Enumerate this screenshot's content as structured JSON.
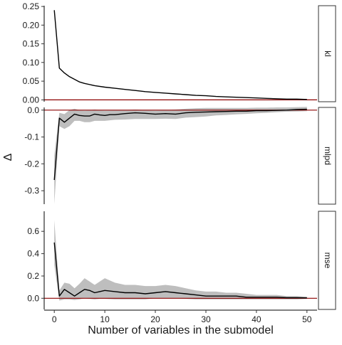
{
  "chart_data": {
    "type": "line",
    "facets": "vertical",
    "xlabel": "Number of variables in the submodel",
    "ylabel": "Δ",
    "xlim": [
      -2,
      52
    ],
    "x_ticks": [
      0,
      10,
      20,
      30,
      40,
      50
    ],
    "x_tick_labels": [
      "0",
      "10",
      "20",
      "30",
      "40",
      "50"
    ],
    "reference_line": {
      "y": 0,
      "color": "#8b0000"
    },
    "line_color": "#000000",
    "band_color": "#bebebe",
    "panels": [
      {
        "strip_label": "kl",
        "ylim": [
          -0.005,
          0.252
        ],
        "y_ticks": [
          0.0,
          0.05,
          0.1,
          0.15,
          0.2,
          0.25
        ],
        "y_tick_labels": [
          "0.00",
          "0.05",
          "0.10",
          "0.15",
          "0.20",
          "0.25"
        ],
        "x": [
          0,
          1,
          2,
          3,
          4,
          5,
          6,
          8,
          10,
          12,
          14,
          16,
          18,
          20,
          22,
          24,
          26,
          28,
          30,
          32,
          34,
          36,
          38,
          40,
          42,
          44,
          46,
          48,
          50
        ],
        "y": [
          0.24,
          0.085,
          0.072,
          0.062,
          0.055,
          0.048,
          0.044,
          0.038,
          0.034,
          0.031,
          0.028,
          0.025,
          0.022,
          0.02,
          0.018,
          0.016,
          0.014,
          0.012,
          0.011,
          0.009,
          0.008,
          0.007,
          0.006,
          0.005,
          0.004,
          0.003,
          0.002,
          0.002,
          0.001
        ],
        "lower": null,
        "upper": null
      },
      {
        "strip_label": "mlpd",
        "ylim": [
          -0.35,
          0.01
        ],
        "y_ticks": [
          0.0,
          -0.1,
          -0.2,
          -0.3
        ],
        "y_tick_labels": [
          "0.0",
          "-0.1",
          "-0.2",
          "-0.3"
        ],
        "x": [
          0,
          1,
          2,
          3,
          4,
          5,
          6,
          7,
          8,
          9,
          10,
          11,
          12,
          14,
          16,
          18,
          20,
          22,
          24,
          26,
          28,
          30,
          32,
          34,
          36,
          38,
          40,
          42,
          44,
          46,
          48,
          50
        ],
        "y": [
          -0.26,
          -0.03,
          -0.045,
          -0.03,
          -0.015,
          -0.02,
          -0.022,
          -0.022,
          -0.015,
          -0.018,
          -0.02,
          -0.017,
          -0.017,
          -0.013,
          -0.01,
          -0.012,
          -0.015,
          -0.013,
          -0.015,
          -0.01,
          -0.008,
          -0.007,
          -0.006,
          -0.005,
          -0.004,
          -0.004,
          -0.002,
          -0.002,
          -0.001,
          0.0,
          0.002,
          0.003
        ],
        "lower": [
          -0.35,
          -0.06,
          -0.07,
          -0.06,
          -0.04,
          -0.04,
          -0.045,
          -0.045,
          -0.04,
          -0.04,
          -0.04,
          -0.038,
          -0.036,
          -0.035,
          -0.033,
          -0.033,
          -0.033,
          -0.032,
          -0.033,
          -0.028,
          -0.026,
          -0.024,
          -0.02,
          -0.018,
          -0.016,
          -0.014,
          -0.012,
          -0.01,
          -0.008,
          -0.006,
          -0.005,
          -0.004
        ],
        "upper": [
          -0.17,
          -0.01,
          -0.015,
          0.0,
          0.005,
          0.0,
          -0.002,
          0.0,
          0.002,
          0.0,
          -0.002,
          -0.001,
          0.0,
          0.0,
          0.002,
          0.0,
          -0.002,
          0.0,
          0.002,
          0.005,
          0.007,
          0.008,
          0.008,
          0.008,
          0.008,
          0.008,
          0.009,
          0.009,
          0.01,
          0.01,
          0.011,
          0.012
        ]
      },
      {
        "strip_label": "mse",
        "ylim": [
          -0.1,
          0.78
        ],
        "y_ticks": [
          0.0,
          0.2,
          0.4,
          0.6
        ],
        "y_tick_labels": [
          "0.0",
          "0.2",
          "0.4",
          "0.6"
        ],
        "x": [
          0,
          1,
          2,
          3,
          4,
          5,
          6,
          7,
          8,
          9,
          10,
          12,
          14,
          16,
          18,
          20,
          22,
          24,
          26,
          28,
          30,
          32,
          34,
          36,
          38,
          40,
          42,
          44,
          46,
          48,
          50
        ],
        "y": [
          0.5,
          0.02,
          0.08,
          0.05,
          0.02,
          0.05,
          0.08,
          0.07,
          0.05,
          0.06,
          0.07,
          0.06,
          0.05,
          0.05,
          0.04,
          0.05,
          0.06,
          0.05,
          0.04,
          0.03,
          0.02,
          0.02,
          0.02,
          0.02,
          0.01,
          0.01,
          0.01,
          0.01,
          0.005,
          0.005,
          0.003
        ],
        "lower": [
          0.3,
          -0.02,
          -0.01,
          -0.01,
          -0.015,
          -0.01,
          0.0,
          -0.005,
          -0.01,
          -0.005,
          -0.005,
          -0.01,
          -0.01,
          -0.01,
          -0.01,
          0.0,
          0.0,
          0.0,
          -0.005,
          -0.01,
          -0.01,
          -0.01,
          -0.01,
          -0.01,
          -0.01,
          -0.01,
          -0.01,
          -0.01,
          -0.01,
          -0.01,
          -0.005
        ],
        "upper": [
          0.7,
          0.07,
          0.14,
          0.13,
          0.09,
          0.13,
          0.18,
          0.15,
          0.12,
          0.15,
          0.18,
          0.14,
          0.12,
          0.12,
          0.11,
          0.11,
          0.12,
          0.11,
          0.09,
          0.07,
          0.06,
          0.06,
          0.05,
          0.05,
          0.04,
          0.03,
          0.03,
          0.03,
          0.02,
          0.02,
          0.015
        ]
      }
    ]
  }
}
